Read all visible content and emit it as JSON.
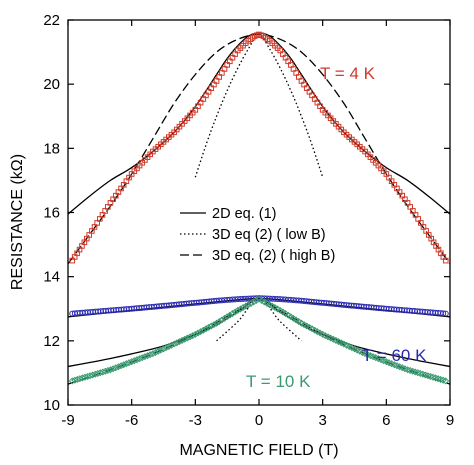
{
  "chart_data": {
    "type": "scatter",
    "xlabel": "MAGNETIC FIELD (T)",
    "ylabel": "RESISTANCE (kΩ)",
    "xlim": [
      -9,
      9
    ],
    "ylim": [
      10,
      22
    ],
    "xticks": [
      -9,
      -6,
      -3,
      0,
      3,
      6,
      9
    ],
    "yticks": [
      10,
      12,
      14,
      16,
      18,
      20,
      22
    ],
    "grid": false,
    "legend": {
      "position": "center",
      "entries": [
        {
          "label": "2D eq.  (1)",
          "style": "solid"
        },
        {
          "label": "3D eq (2) ( low B)",
          "style": "dotted"
        },
        {
          "label": "3D eq. (2) ( high B)",
          "style": "dashed"
        }
      ]
    },
    "annotations": [
      {
        "text": "T = 4 K",
        "color": "#d03a2a"
      },
      {
        "text": "T = 60 K",
        "color": "#2a2ab0"
      },
      {
        "text": "T = 10 K",
        "color": "#3a9a70"
      }
    ],
    "series": [
      {
        "marker": "square",
        "color": "#d03a2a",
        "x": [
          -8.8,
          -8.0,
          -7.0,
          -6.0,
          -5.0,
          -4.0,
          -3.0,
          -2.0,
          -1.5,
          -1.0,
          -0.5,
          -0.2,
          0.0,
          0.2,
          0.5,
          1.0,
          1.5,
          2.0,
          3.0,
          4.0,
          5.0,
          6.0,
          7.0,
          8.0,
          8.8
        ],
        "y": [
          14.5,
          15.3,
          16.3,
          17.2,
          17.9,
          18.5,
          19.2,
          20.1,
          20.6,
          21.05,
          21.35,
          21.5,
          21.55,
          21.5,
          21.35,
          21.05,
          20.6,
          20.1,
          19.2,
          18.5,
          17.9,
          17.2,
          16.3,
          15.3,
          14.5
        ]
      },
      {
        "marker": "circle",
        "color": "#2a2ab0",
        "x": [
          -8.8,
          -6.0,
          -4.0,
          -2.0,
          -1.0,
          0.0,
          1.0,
          2.0,
          4.0,
          6.0,
          8.8
        ],
        "y": [
          12.85,
          13.0,
          13.12,
          13.25,
          13.3,
          13.33,
          13.3,
          13.25,
          13.12,
          13.0,
          12.85
        ]
      },
      {
        "marker": "diamond",
        "color": "#3a9a70",
        "x": [
          -8.8,
          -7.0,
          -6.0,
          -5.0,
          -4.0,
          -3.0,
          -2.0,
          -1.0,
          0.0,
          1.0,
          2.0,
          3.0,
          4.0,
          5.0,
          6.0,
          7.0,
          8.8
        ],
        "y": [
          10.75,
          11.1,
          11.35,
          11.6,
          11.9,
          12.2,
          12.55,
          12.95,
          13.3,
          12.95,
          12.55,
          12.2,
          11.9,
          11.6,
          11.35,
          11.1,
          10.75
        ]
      },
      {
        "style": "solid",
        "color": "#000000",
        "x": [
          -9,
          -8,
          -7,
          -6,
          -5,
          -4,
          -3,
          -2,
          -1.5,
          -1,
          -0.5,
          0,
          0.5,
          1,
          1.5,
          2,
          3,
          4,
          5,
          6,
          7,
          8,
          9
        ],
        "y": [
          15.95,
          16.5,
          17.0,
          17.4,
          17.9,
          18.5,
          19.3,
          20.3,
          20.8,
          21.2,
          21.5,
          21.6,
          21.5,
          21.2,
          20.8,
          20.3,
          19.3,
          18.5,
          17.9,
          17.4,
          17.0,
          16.5,
          15.95
        ]
      },
      {
        "style": "dotted",
        "color": "#000000",
        "x": [
          -3,
          -2.5,
          -2,
          -1.5,
          -1,
          -0.5,
          0,
          0.5,
          1,
          1.5,
          2,
          2.5,
          3
        ],
        "y": [
          17.1,
          18.1,
          19.0,
          19.8,
          20.5,
          21.1,
          21.55,
          21.1,
          20.5,
          19.8,
          19.0,
          18.1,
          17.1
        ]
      },
      {
        "style": "dashed",
        "color": "#000000",
        "x": [
          -9,
          -8,
          -7,
          -6,
          -5,
          -4,
          -3,
          -2,
          -1,
          0,
          1,
          2,
          3,
          4,
          5,
          6,
          7,
          8,
          9
        ],
        "y": [
          14.4,
          15.3,
          16.2,
          17.2,
          18.3,
          19.4,
          20.3,
          21.0,
          21.4,
          21.55,
          21.4,
          21.0,
          20.3,
          19.4,
          18.3,
          17.2,
          16.2,
          15.3,
          14.4
        ]
      },
      {
        "style": "solid",
        "color": "#000000",
        "x": [
          -9,
          -6,
          -3,
          -1,
          0,
          1,
          3,
          6,
          9
        ],
        "y": [
          12.75,
          12.95,
          13.15,
          13.28,
          13.32,
          13.28,
          13.15,
          12.95,
          12.75
        ]
      },
      {
        "style": "solid",
        "color": "#000000",
        "x": [
          -9,
          -7,
          -5,
          -4,
          -3,
          -2,
          -1,
          0,
          1,
          2,
          3,
          4,
          5,
          7,
          9
        ],
        "y": [
          11.2,
          11.45,
          11.75,
          11.95,
          12.2,
          12.5,
          12.9,
          13.3,
          12.9,
          12.5,
          12.2,
          11.95,
          11.75,
          11.45,
          11.2
        ]
      },
      {
        "style": "dashed",
        "color": "#000000",
        "x": [
          -9,
          -7,
          -5,
          -3,
          -1,
          0,
          1,
          3,
          5,
          7,
          9
        ],
        "y": [
          10.65,
          11.1,
          11.6,
          12.2,
          12.95,
          13.3,
          12.95,
          12.2,
          11.6,
          11.1,
          10.65
        ]
      },
      {
        "style": "dotted",
        "color": "#000000",
        "x": [
          -2,
          -1,
          0,
          1,
          2
        ],
        "y": [
          12.0,
          12.6,
          13.3,
          12.6,
          12.0
        ]
      }
    ]
  }
}
